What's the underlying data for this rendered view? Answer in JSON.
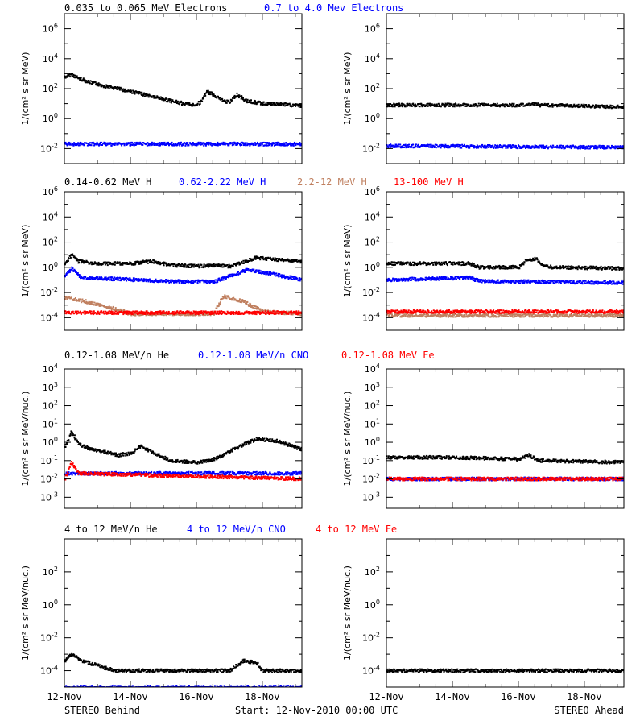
{
  "footer": {
    "left": "STEREO Behind",
    "center": "Start: 12-Nov-2010 00:00 UTC",
    "right": "STEREO Ahead"
  },
  "x_tick_labels": [
    "12-Nov",
    "14-Nov",
    "16-Nov",
    "18-Nov"
  ],
  "colors": {
    "black": "#000000",
    "blue": "#0000ff",
    "tan": "#c08060",
    "red": "#ff0000"
  },
  "chart_data": [
    {
      "type": "scatter",
      "row": 1,
      "legend": [
        {
          "label": "0.035 to 0.065 MeV Electrons",
          "color": "#000000"
        },
        {
          "label": "0.7 to 4.0 Mev Electrons",
          "color": "#0000ff"
        }
      ],
      "ylabel": "1/(cm² s sr MeV)",
      "y_scale": "log",
      "y_ticks_exp": [
        -2,
        0,
        2,
        4,
        6
      ],
      "ylim_exp": [
        -3,
        7
      ],
      "xlim_days": [
        12,
        19.2
      ],
      "panels": [
        {
          "name": "STEREO Behind",
          "series": [
            {
              "color": "#000000",
              "points": [
                [
                  12.0,
                  600
                ],
                [
                  12.2,
                  900
                ],
                [
                  12.4,
                  500
                ],
                [
                  12.8,
                  250
                ],
                [
                  13.2,
                  150
                ],
                [
                  13.8,
                  80
                ],
                [
                  14.3,
                  45
                ],
                [
                  14.8,
                  25
                ],
                [
                  15.2,
                  15
                ],
                [
                  15.6,
                  10
                ],
                [
                  15.9,
                  8
                ],
                [
                  16.1,
                  12
                ],
                [
                  16.3,
                  60
                ],
                [
                  16.5,
                  40
                ],
                [
                  16.8,
                  15
                ],
                [
                  17.0,
                  12
                ],
                [
                  17.2,
                  40
                ],
                [
                  17.5,
                  15
                ],
                [
                  18.0,
                  10
                ],
                [
                  18.5,
                  9
                ],
                [
                  19.2,
                  7
                ]
              ]
            },
            {
              "color": "#0000ff",
              "points": [
                [
                  12.0,
                  0.02
                ],
                [
                  19.2,
                  0.02
                ]
              ]
            }
          ]
        },
        {
          "name": "STEREO Ahead",
          "series": [
            {
              "color": "#000000",
              "points": [
                [
                  12.0,
                  8
                ],
                [
                  16.2,
                  8
                ],
                [
                  16.4,
                  10
                ],
                [
                  16.6,
                  8
                ],
                [
                  19.2,
                  6
                ]
              ]
            },
            {
              "color": "#0000ff",
              "points": [
                [
                  12.0,
                  0.015
                ],
                [
                  19.2,
                  0.012
                ]
              ]
            }
          ]
        }
      ]
    },
    {
      "type": "scatter",
      "row": 2,
      "legend": [
        {
          "label": "0.14-0.62 MeV H",
          "color": "#000000"
        },
        {
          "label": "0.62-2.22 MeV H",
          "color": "#0000ff"
        },
        {
          "label": "2.2-12 MeV H",
          "color": "#c08060"
        },
        {
          "label": "13-100 MeV H",
          "color": "#ff0000"
        }
      ],
      "ylabel": "1/(cm² s sr MeV)",
      "y_scale": "log",
      "y_ticks_exp": [
        -4,
        -2,
        0,
        2,
        4,
        6
      ],
      "ylim_exp": [
        -5,
        6
      ],
      "xlim_days": [
        12,
        19.2
      ],
      "panels": [
        {
          "name": "STEREO Behind",
          "series": [
            {
              "color": "#000000",
              "points": [
                [
                  12.0,
                  2
                ],
                [
                  12.2,
                  10
                ],
                [
                  12.4,
                  3
                ],
                [
                  13.0,
                  2
                ],
                [
                  14.0,
                  2
                ],
                [
                  14.6,
                  3
                ],
                [
                  15.2,
                  1.5
                ],
                [
                  16.0,
                  1.2
                ],
                [
                  16.6,
                  1.5
                ],
                [
                  17.0,
                  1.2
                ],
                [
                  17.4,
                  2.5
                ],
                [
                  17.8,
                  6
                ],
                [
                  18.4,
                  4
                ],
                [
                  19.2,
                  3
                ]
              ]
            },
            {
              "color": "#0000ff",
              "points": [
                [
                  12.0,
                  0.2
                ],
                [
                  12.2,
                  0.8
                ],
                [
                  12.5,
                  0.15
                ],
                [
                  13.5,
                  0.12
                ],
                [
                  15.0,
                  0.08
                ],
                [
                  16.5,
                  0.07
                ],
                [
                  17.0,
                  0.2
                ],
                [
                  17.5,
                  0.6
                ],
                [
                  18.0,
                  0.4
                ],
                [
                  19.2,
                  0.1
                ]
              ]
            },
            {
              "color": "#c08060",
              "points": [
                [
                  12.0,
                  0.004
                ],
                [
                  12.6,
                  0.002
                ],
                [
                  13.4,
                  0.0006
                ],
                [
                  14.0,
                  0.0002
                ],
                [
                  16.5,
                  0.0002
                ],
                [
                  16.8,
                  0.005
                ],
                [
                  17.4,
                  0.002
                ],
                [
                  18.0,
                  0.0003
                ],
                [
                  19.2,
                  0.0002
                ]
              ]
            },
            {
              "color": "#ff0000",
              "points": [
                [
                  12.0,
                  0.00025
                ],
                [
                  19.2,
                  0.00025
                ]
              ]
            }
          ]
        },
        {
          "name": "STEREO Ahead",
          "series": [
            {
              "color": "#000000",
              "points": [
                [
                  12.0,
                  2
                ],
                [
                  14.5,
                  2
                ],
                [
                  14.8,
                  1
                ],
                [
                  16.0,
                  1
                ],
                [
                  16.2,
                  3
                ],
                [
                  16.5,
                  5
                ],
                [
                  16.7,
                  1.5
                ],
                [
                  17.0,
                  1
                ],
                [
                  19.2,
                  0.8
                ]
              ]
            },
            {
              "color": "#0000ff",
              "points": [
                [
                  12.0,
                  0.1
                ],
                [
                  14.5,
                  0.15
                ],
                [
                  14.8,
                  0.08
                ],
                [
                  19.2,
                  0.06
                ]
              ]
            },
            {
              "color": "#c08060",
              "points": [
                [
                  12.0,
                  0.00015
                ],
                [
                  19.2,
                  0.00015
                ]
              ]
            },
            {
              "color": "#ff0000",
              "points": [
                [
                  12.0,
                  0.0003
                ],
                [
                  19.2,
                  0.0003
                ]
              ]
            }
          ]
        }
      ]
    },
    {
      "type": "scatter",
      "row": 3,
      "legend": [
        {
          "label": "0.12-1.08 MeV/n He",
          "color": "#000000"
        },
        {
          "label": "0.12-1.08 MeV/n CNO",
          "color": "#0000ff"
        },
        {
          "label": "0.12-1.08 MeV Fe",
          "color": "#ff0000"
        }
      ],
      "ylabel": "1/(cm² s sr MeV/nuc.)",
      "y_scale": "log",
      "y_ticks_exp": [
        -3,
        -2,
        -1,
        0,
        1,
        2,
        3,
        4
      ],
      "ylim_exp": [
        -3.6,
        4
      ],
      "xlim_days": [
        12,
        19.2
      ],
      "panels": [
        {
          "name": "STEREO Behind",
          "series": [
            {
              "color": "#000000",
              "points": [
                [
                  12.0,
                  0.5
                ],
                [
                  12.2,
                  4
                ],
                [
                  12.4,
                  0.8
                ],
                [
                  12.8,
                  0.4
                ],
                [
                  13.2,
                  0.3
                ],
                [
                  13.6,
                  0.2
                ],
                [
                  14.0,
                  0.25
                ],
                [
                  14.3,
                  0.6
                ],
                [
                  14.6,
                  0.3
                ],
                [
                  15.2,
                  0.1
                ],
                [
                  16.0,
                  0.08
                ],
                [
                  16.4,
                  0.1
                ],
                [
                  16.8,
                  0.2
                ],
                [
                  17.2,
                  0.5
                ],
                [
                  17.8,
                  1.5
                ],
                [
                  18.4,
                  1.2
                ],
                [
                  19.2,
                  0.4
                ]
              ]
            },
            {
              "color": "#0000ff",
              "points": [
                [
                  12.0,
                  0.02
                ],
                [
                  19.2,
                  0.02
                ]
              ]
            },
            {
              "color": "#ff0000",
              "points": [
                [
                  12.0,
                  0.01
                ],
                [
                  12.2,
                  0.08
                ],
                [
                  12.4,
                  0.02
                ],
                [
                  19.2,
                  0.01
                ]
              ]
            }
          ]
        },
        {
          "name": "STEREO Ahead",
          "series": [
            {
              "color": "#000000",
              "points": [
                [
                  12.0,
                  0.15
                ],
                [
                  14.0,
                  0.15
                ],
                [
                  16.0,
                  0.12
                ],
                [
                  16.3,
                  0.2
                ],
                [
                  16.6,
                  0.1
                ],
                [
                  19.2,
                  0.08
                ]
              ]
            },
            {
              "color": "#0000ff",
              "points": [
                [
                  12.0,
                  0.01
                ],
                [
                  19.2,
                  0.01
                ]
              ]
            },
            {
              "color": "#ff0000",
              "points": [
                [
                  12.0,
                  0.01
                ],
                [
                  19.2,
                  0.01
                ]
              ]
            }
          ]
        }
      ]
    },
    {
      "type": "scatter",
      "row": 4,
      "legend": [
        {
          "label": "4 to 12 MeV/n He",
          "color": "#000000"
        },
        {
          "label": "4 to 12 MeV/n CNO",
          "color": "#0000ff"
        },
        {
          "label": "4 to 12 MeV Fe",
          "color": "#ff0000"
        }
      ],
      "ylabel": "1/(cm² s sr MeV/nuc.)",
      "y_scale": "log",
      "y_ticks_exp": [
        -4,
        -2,
        0,
        2
      ],
      "ylim_exp": [
        -5,
        4
      ],
      "xlim_days": [
        12,
        19.2
      ],
      "panels": [
        {
          "name": "STEREO Behind",
          "series": [
            {
              "color": "#000000",
              "points": [
                [
                  12.0,
                  0.0004
                ],
                [
                  12.2,
                  0.001
                ],
                [
                  12.5,
                  0.0004
                ],
                [
                  13.0,
                  0.0002
                ],
                [
                  13.5,
                  0.0001
                ],
                [
                  17.0,
                  0.0001
                ],
                [
                  17.4,
                  0.0004
                ],
                [
                  17.8,
                  0.0003
                ],
                [
                  18.0,
                  0.0001
                ],
                [
                  19.2,
                  0.0001
                ]
              ]
            },
            {
              "color": "#0000ff",
              "points": [
                [
                  12.0,
                  1e-05
                ],
                [
                  19.2,
                  1e-05
                ]
              ]
            }
          ]
        },
        {
          "name": "STEREO Ahead",
          "series": [
            {
              "color": "#000000",
              "points": [
                [
                  12.0,
                  0.0001
                ],
                [
                  19.2,
                  0.0001
                ]
              ]
            }
          ]
        }
      ]
    }
  ]
}
